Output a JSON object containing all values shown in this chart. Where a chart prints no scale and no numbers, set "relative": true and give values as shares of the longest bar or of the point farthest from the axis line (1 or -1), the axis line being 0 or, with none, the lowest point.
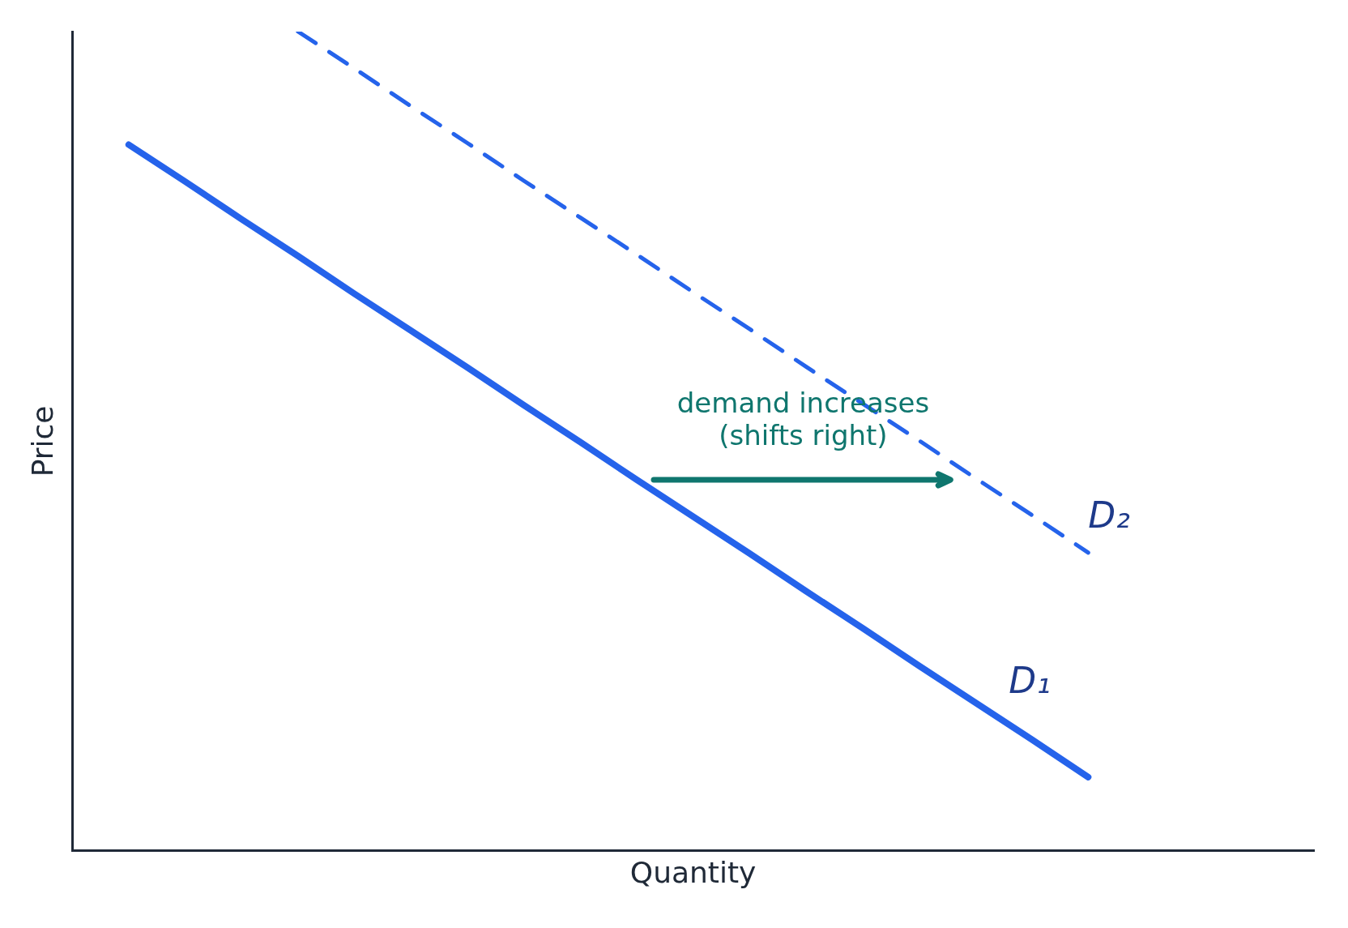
{
  "chart_data": {
    "type": "line",
    "relative": true,
    "xlabel": "Quantity",
    "ylabel": "Price",
    "legend": false,
    "grid": false,
    "marker": "none",
    "tick_labels": false,
    "categories": [
      null,
      null,
      null,
      null,
      null,
      null,
      null,
      null,
      null,
      null,
      null,
      null,
      null,
      null,
      null,
      null,
      null,
      null,
      null,
      null,
      null,
      null,
      null
    ],
    "series": [
      {
        "name": "D₁",
        "color": "#2563eb",
        "line_style": "solid",
        "values": [
          null,
          0.862,
          0.817,
          0.771,
          0.726,
          0.68,
          0.635,
          0.59,
          0.544,
          0.499,
          0.453,
          0.408,
          0.363,
          0.317,
          0.272,
          0.226,
          0.181,
          0.136,
          0.09,
          null,
          null,
          null,
          null
        ]
      },
      {
        "name": "D₂",
        "color": "#2563eb",
        "line_style": "dashed",
        "values": [
          null,
          null,
          null,
          null,
          1.0,
          0.955,
          0.909,
          0.864,
          0.818,
          0.773,
          0.728,
          0.682,
          0.637,
          0.591,
          0.546,
          0.501,
          0.455,
          0.41,
          0.364,
          null,
          null,
          null,
          null
        ]
      }
    ],
    "annotations": [
      "demand increases\n(shifts right)"
    ]
  }
}
